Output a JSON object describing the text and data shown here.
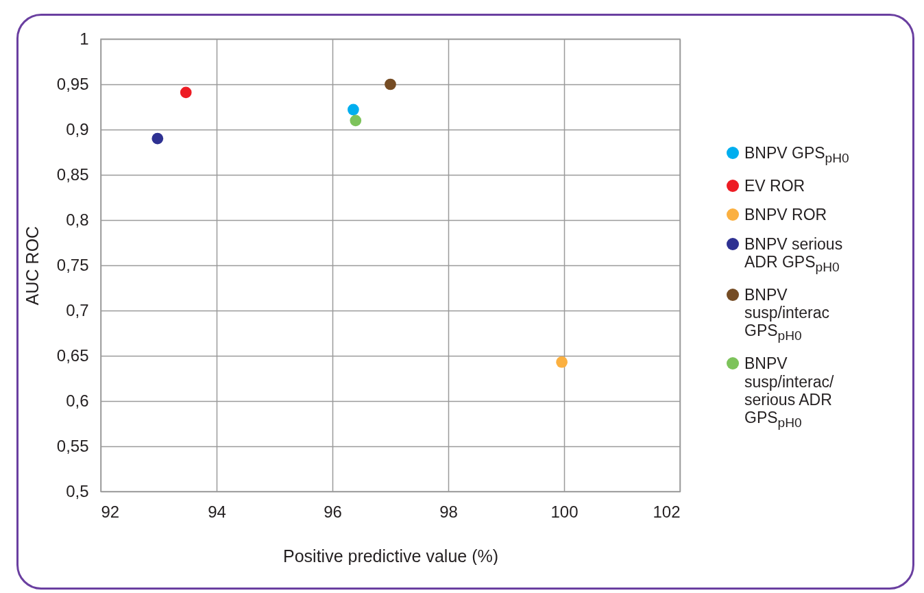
{
  "chart_data": {
    "type": "scatter",
    "xlabel": "Positive predictive value (%)",
    "ylabel": "AUC ROC",
    "xlim": [
      92,
      102
    ],
    "xticks": [
      92,
      94,
      96,
      98,
      100,
      102
    ],
    "ylim": [
      0.5,
      1
    ],
    "yticks": [
      {
        "value": 0.5,
        "label": "0,5"
      },
      {
        "value": 0.55,
        "label": "0,55"
      },
      {
        "value": 0.6,
        "label": "0,6"
      },
      {
        "value": 0.65,
        "label": "0,65"
      },
      {
        "value": 0.7,
        "label": "0,7"
      },
      {
        "value": 0.75,
        "label": "0,75"
      },
      {
        "value": 0.8,
        "label": "0,8"
      },
      {
        "value": 0.85,
        "label": "0,85"
      },
      {
        "value": 0.9,
        "label": "0,9"
      },
      {
        "value": 0.95,
        "label": "0,95"
      },
      1
    ],
    "grid": true,
    "legend": "right",
    "marker": "circle",
    "series": [
      {
        "name": "BNPV GPS$_{pH0}$",
        "color": "#00aeef",
        "x": [
          96.36
        ],
        "values": [
          0.922
        ]
      },
      {
        "name": "EV ROR",
        "color": "#ed1c24",
        "x": [
          93.47
        ],
        "values": [
          0.941
        ]
      },
      {
        "name": "BNPV ROR",
        "color": "#fbb040",
        "x": [
          99.96
        ],
        "values": [
          0.643
        ]
      },
      {
        "name": "BNPV serious ADR GPS$_{pH0}$",
        "color": "#2e3192",
        "x": [
          92.98
        ],
        "values": [
          0.89
        ]
      },
      {
        "name": "BNPV susp/interac GPS$_{pH0}$",
        "color": "#754c24",
        "x": [
          97.0
        ],
        "values": [
          0.95
        ]
      },
      {
        "name": "BNPV susp/interac/ serious ADR GPS$_{pH0}$",
        "color": "#7dc35b",
        "x": [
          96.4
        ],
        "values": [
          0.91
        ]
      }
    ]
  }
}
